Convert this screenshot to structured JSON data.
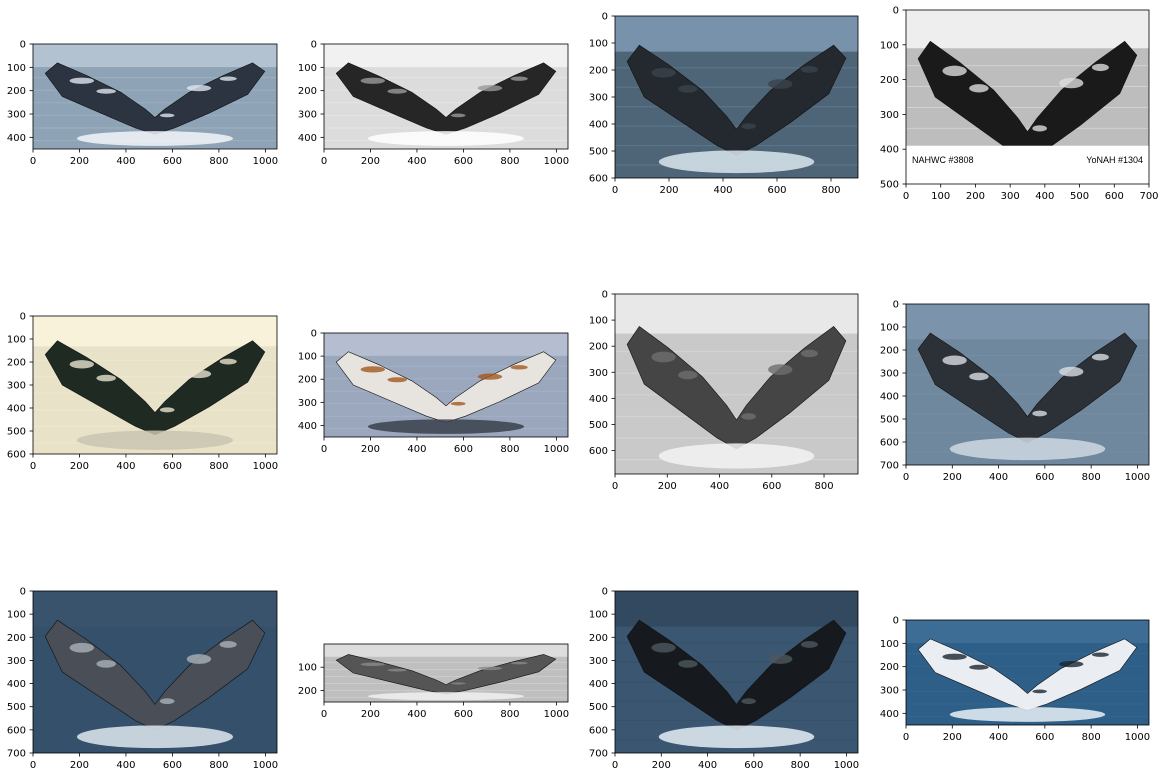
{
  "figure": {
    "background": "#ffffff",
    "layout": {
      "rows": 3,
      "cols": 4
    }
  },
  "chart_data": [
    {
      "type": "image",
      "image": "humpback-whale-fluke",
      "palette": {
        "sky": "#b9c8d6",
        "water": "#8ea3b5",
        "fluke": "#2b3440",
        "spots": "#dfe7ee",
        "splash": "#f2f6f9"
      },
      "xlim": [
        0,
        1050
      ],
      "ylim": [
        450,
        0
      ],
      "xticks": [
        0,
        200,
        400,
        600,
        800,
        1000
      ],
      "yticks": [
        0,
        100,
        200,
        300,
        400
      ]
    },
    {
      "type": "image",
      "image": "humpback-whale-fluke",
      "palette": {
        "sky": "#f4f4f4",
        "water": "#dcdcdc",
        "fluke": "#262626",
        "spots": "#9a9a9a",
        "splash": "#ffffff"
      },
      "xlim": [
        0,
        1050
      ],
      "ylim": [
        450,
        0
      ],
      "xticks": [
        0,
        200,
        400,
        600,
        800,
        1000
      ],
      "yticks": [
        0,
        100,
        200,
        300,
        400
      ]
    },
    {
      "type": "image",
      "image": "humpback-whale-fluke",
      "palette": {
        "sky": "#7f9ab3",
        "water": "#4e6477",
        "fluke": "#23292f",
        "spots": "#3a434c",
        "splash": "#dbe6ef"
      },
      "xlim": [
        0,
        900
      ],
      "ylim": [
        600,
        0
      ],
      "xticks": [
        0,
        200,
        400,
        600,
        800
      ],
      "yticks": [
        0,
        100,
        200,
        300,
        400,
        500,
        600
      ]
    },
    {
      "type": "image",
      "image": "humpback-whale-fluke",
      "palette": {
        "sky": "#f7f7f7",
        "water": "#bdbdbd",
        "fluke": "#1a1a1a",
        "spots": "#dcdcdc",
        "splash": "#ffffff"
      },
      "xlim": [
        0,
        700
      ],
      "ylim": [
        500,
        0
      ],
      "xticks": [
        0,
        100,
        200,
        300,
        400,
        500,
        600,
        700
      ],
      "yticks": [
        0,
        100,
        200,
        300,
        400,
        500
      ],
      "labels": [
        "NAHWC #3808",
        "YoNAH #1304"
      ]
    },
    {
      "type": "image",
      "image": "humpback-whale-fluke",
      "palette": {
        "sky": "#fbf5de",
        "water": "#e8e2c9",
        "fluke": "#1f2a22",
        "spots": "#e7e2cf",
        "splash": "#c8c4b0"
      },
      "xlim": [
        0,
        1050
      ],
      "ylim": [
        600,
        0
      ],
      "xticks": [
        0,
        200,
        400,
        600,
        800,
        1000
      ],
      "yticks": [
        0,
        100,
        200,
        300,
        400,
        500,
        600
      ]
    },
    {
      "type": "image",
      "image": "humpback-whale-fluke",
      "palette": {
        "sky": "#b8c2d4",
        "water": "#9aa7bd",
        "fluke": "#e7e4df",
        "spots": "#a2581e",
        "splash": "#39414d"
      },
      "xlim": [
        0,
        1050
      ],
      "ylim": [
        450,
        0
      ],
      "xticks": [
        0,
        200,
        400,
        600,
        800,
        1000
      ],
      "yticks": [
        0,
        100,
        200,
        300,
        400
      ]
    },
    {
      "type": "image",
      "image": "humpback-whale-fluke",
      "palette": {
        "sky": "#ededed",
        "water": "#c9c9c9",
        "fluke": "#454545",
        "spots": "#6e6e6e",
        "splash": "#f3f3f3"
      },
      "xlim": [
        0,
        930
      ],
      "ylim": [
        690,
        0
      ],
      "xticks": [
        0,
        200,
        400,
        600,
        800
      ],
      "yticks": [
        0,
        100,
        200,
        300,
        400,
        500,
        600
      ]
    },
    {
      "type": "image",
      "image": "humpback-whale-fluke",
      "palette": {
        "sky": "#7e97ad",
        "water": "#6f889e",
        "fluke": "#2c3138",
        "spots": "#d9dde2",
        "splash": "#cfd9e2"
      },
      "xlim": [
        0,
        1050
      ],
      "ylim": [
        700,
        0
      ],
      "xticks": [
        0,
        200,
        400,
        600,
        800,
        1000
      ],
      "yticks": [
        0,
        100,
        200,
        300,
        400,
        500,
        600,
        700
      ]
    },
    {
      "type": "image",
      "image": "humpback-whale-fluke",
      "palette": {
        "sky": "#3b536d",
        "water": "#34506a",
        "fluke": "#4a4f57",
        "spots": "#a9b0b8",
        "splash": "#dfe7ee"
      },
      "xlim": [
        0,
        1050
      ],
      "ylim": [
        700,
        0
      ],
      "xticks": [
        0,
        200,
        400,
        600,
        800,
        1000
      ],
      "yticks": [
        0,
        100,
        200,
        300,
        400,
        500,
        600,
        700
      ]
    },
    {
      "type": "image",
      "image": "humpback-whale-fluke",
      "palette": {
        "sky": "#e2e2e2",
        "water": "#bfbfbf",
        "fluke": "#555555",
        "spots": "#8a8a8a",
        "splash": "#f0f0f0"
      },
      "xlim": [
        0,
        1050
      ],
      "ylim": [
        250,
        0
      ],
      "xticks": [
        0,
        200,
        400,
        600,
        800,
        1000
      ],
      "yticks": [
        100,
        200
      ]
    },
    {
      "type": "image",
      "image": "humpback-whale-fluke",
      "palette": {
        "sky": "#31475d",
        "water": "#3a5671",
        "fluke": "#16191d",
        "spots": "#4d5660",
        "splash": "#e6eef5"
      },
      "xlim": [
        0,
        1050
      ],
      "ylim": [
        700,
        0
      ],
      "xticks": [
        0,
        200,
        400,
        600,
        800,
        1000
      ],
      "yticks": [
        0,
        100,
        200,
        300,
        400,
        500,
        600,
        700
      ]
    },
    {
      "type": "image",
      "image": "humpback-whale-fluke",
      "palette": {
        "sky": "#3f6f98",
        "water": "#2e5f88",
        "fluke": "#eaeef2",
        "spots": "#1c2430",
        "splash": "#e9f1f7"
      },
      "xlim": [
        0,
        1050
      ],
      "ylim": [
        450,
        0
      ],
      "xticks": [
        0,
        200,
        400,
        600,
        800,
        1000
      ],
      "yticks": [
        0,
        100,
        200,
        300,
        400
      ]
    }
  ]
}
